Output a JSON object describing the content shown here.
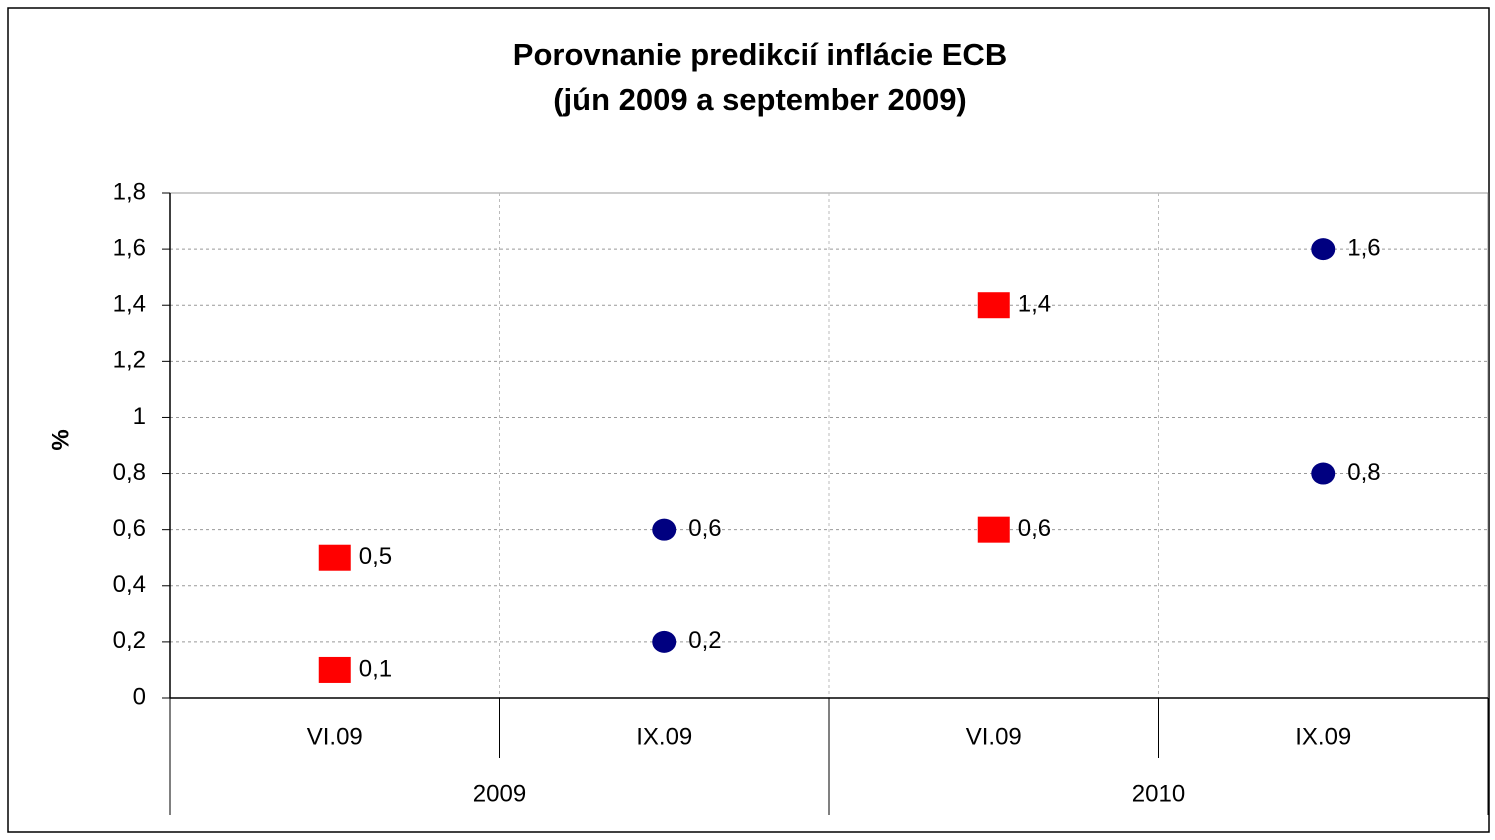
{
  "chart_data": {
    "type": "scatter",
    "title": [
      "Porovnanie predikcií inflácie ECB",
      "(jún 2009 a september 2009)"
    ],
    "y_label": "%",
    "categories": [
      "VI.09",
      "IX.09",
      "VI.09",
      "IX.09"
    ],
    "groups": [
      "2009",
      "2010"
    ],
    "ylim": [
      0,
      1.8
    ],
    "yticks": [
      0,
      {
        "value": 0.2,
        "label": "0,2"
      },
      {
        "value": 0.4,
        "label": "0,4"
      },
      {
        "value": 0.6,
        "label": "0,6"
      },
      {
        "value": 0.8,
        "label": "0,8"
      },
      1,
      {
        "value": 1.2,
        "label": "1,2"
      },
      {
        "value": 1.4,
        "label": "1,4"
      },
      {
        "value": 1.6,
        "label": "1,6"
      },
      {
        "value": 1.8,
        "label": "1,8"
      }
    ],
    "grid": true,
    "series": [
      {
        "color": "#ff0000",
        "marker": "square",
        "values": [
          0.5,
          null,
          1.4,
          null
        ],
        "value_labels": [
          "0,5",
          null,
          "1,4",
          null
        ]
      },
      {
        "color": "#ff0000",
        "marker": "square",
        "values": [
          0.1,
          null,
          0.6,
          null
        ],
        "value_labels": [
          "0,1",
          null,
          "0,6",
          null
        ]
      },
      {
        "color": "#000080",
        "marker": "circle",
        "values": [
          null,
          0.6,
          null,
          1.6
        ],
        "value_labels": [
          null,
          "0,6",
          null,
          "1,6"
        ]
      },
      {
        "color": "#000080",
        "marker": "circle",
        "values": [
          null,
          0.2,
          null,
          0.8
        ],
        "value_labels": [
          null,
          "0,2",
          null,
          "0,8"
        ]
      }
    ]
  }
}
